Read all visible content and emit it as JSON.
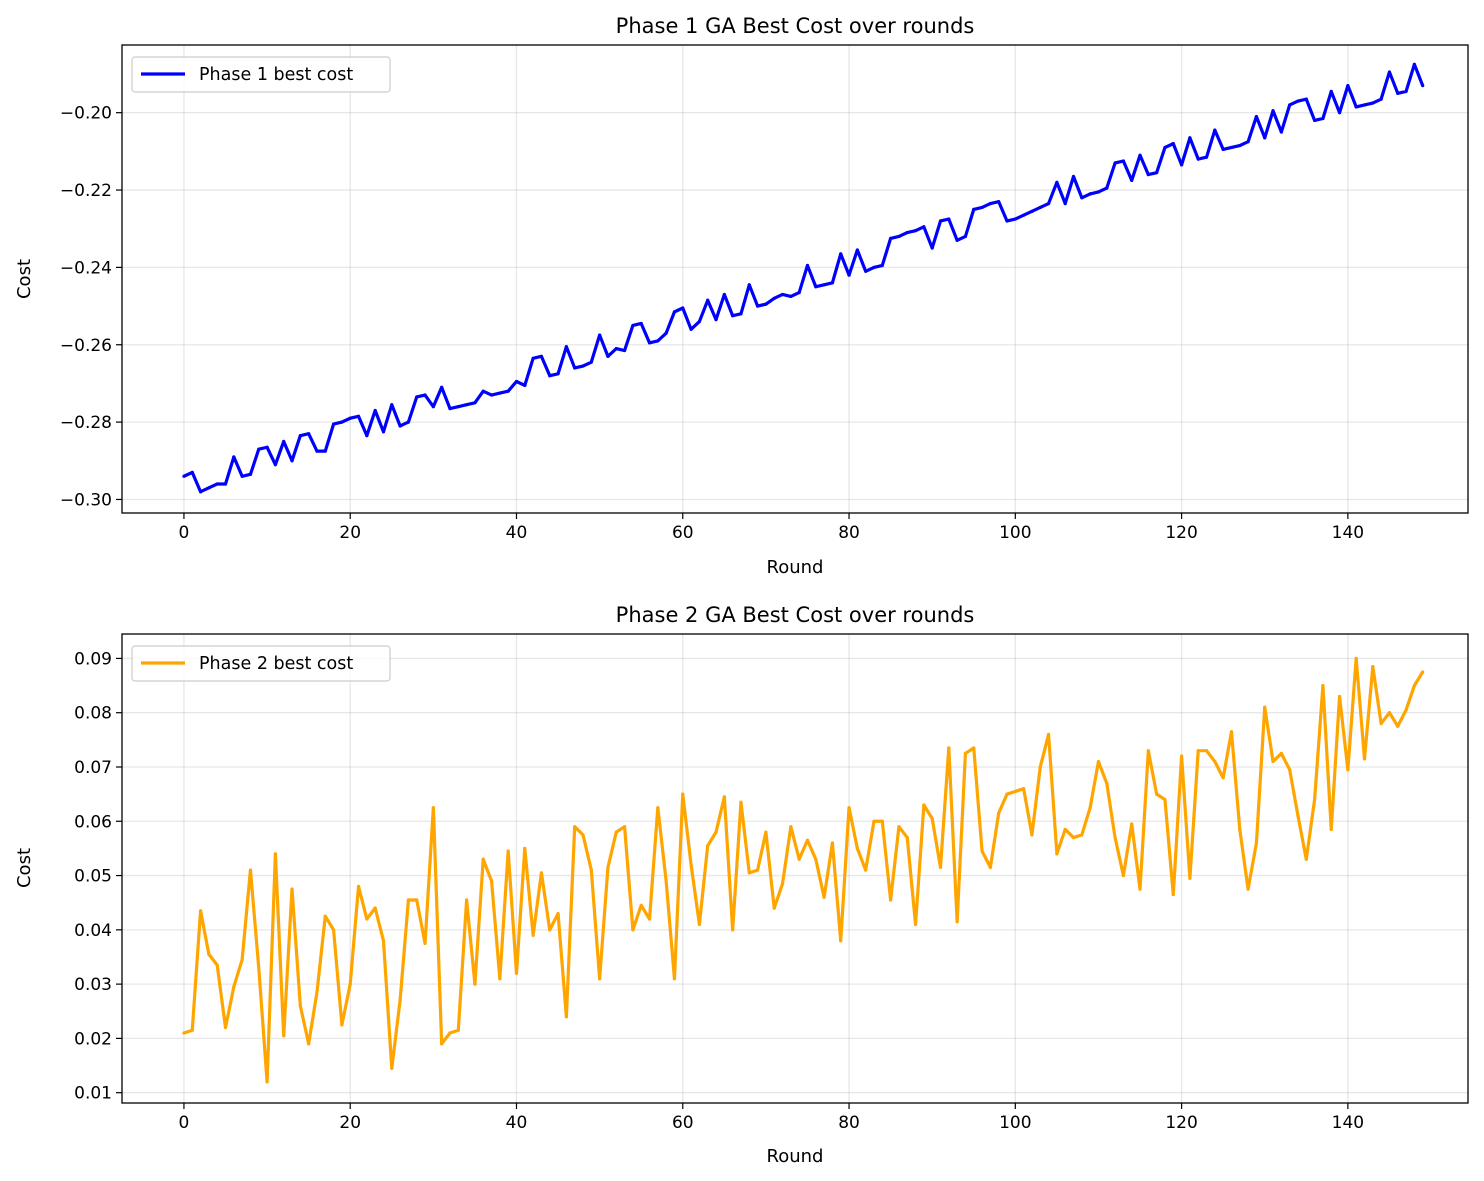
{
  "chart_data": [
    {
      "type": "line",
      "title": "Phase 1 GA Best Cost over rounds",
      "xlabel": "Round",
      "ylabel": "Cost",
      "xlim": [
        -7.45,
        154.45
      ],
      "ylim": [
        -0.3035,
        -0.1825
      ],
      "xticks": [
        0,
        20,
        40,
        60,
        80,
        100,
        120,
        140
      ],
      "yticks": [
        -0.3,
        -0.28,
        -0.26,
        -0.24,
        -0.22,
        -0.2
      ],
      "ytick_labels": [
        "−0.30",
        "−0.28",
        "−0.26",
        "−0.24",
        "−0.22",
        "−0.20"
      ],
      "grid": true,
      "legend_position": "upper-left",
      "series": [
        {
          "name": "Phase 1 best cost",
          "color": "#0000ff",
          "values": [
            -0.294,
            -0.293,
            -0.298,
            -0.297,
            -0.296,
            -0.296,
            -0.289,
            -0.294,
            -0.2935,
            -0.287,
            -0.2865,
            -0.291,
            -0.285,
            -0.29,
            -0.2835,
            -0.283,
            -0.2875,
            -0.2875,
            -0.2805,
            -0.28,
            -0.279,
            -0.2785,
            -0.2835,
            -0.277,
            -0.2825,
            -0.2755,
            -0.281,
            -0.28,
            -0.2735,
            -0.273,
            -0.276,
            -0.271,
            -0.2765,
            -0.276,
            -0.2755,
            -0.275,
            -0.272,
            -0.273,
            -0.2725,
            -0.272,
            -0.2695,
            -0.2705,
            -0.2635,
            -0.263,
            -0.268,
            -0.2675,
            -0.2605,
            -0.266,
            -0.2655,
            -0.2645,
            -0.2575,
            -0.263,
            -0.261,
            -0.2615,
            -0.255,
            -0.2545,
            -0.2595,
            -0.259,
            -0.257,
            -0.2515,
            -0.2505,
            -0.256,
            -0.254,
            -0.2485,
            -0.2535,
            -0.247,
            -0.2525,
            -0.252,
            -0.2445,
            -0.25,
            -0.2495,
            -0.248,
            -0.247,
            -0.2475,
            -0.2465,
            -0.2395,
            -0.245,
            -0.2445,
            -0.244,
            -0.2365,
            -0.242,
            -0.2355,
            -0.241,
            -0.24,
            -0.2395,
            -0.2325,
            -0.232,
            -0.231,
            -0.2305,
            -0.2295,
            -0.235,
            -0.228,
            -0.2275,
            -0.233,
            -0.232,
            -0.225,
            -0.2245,
            -0.2235,
            -0.223,
            -0.228,
            -0.2275,
            -0.2265,
            -0.2255,
            -0.2245,
            -0.2235,
            -0.218,
            -0.2235,
            -0.2165,
            -0.222,
            -0.221,
            -0.2205,
            -0.2195,
            -0.213,
            -0.2125,
            -0.2175,
            -0.211,
            -0.216,
            -0.2155,
            -0.209,
            -0.208,
            -0.2135,
            -0.2065,
            -0.212,
            -0.2115,
            -0.2045,
            -0.2095,
            -0.209,
            -0.2085,
            -0.2075,
            -0.201,
            -0.2065,
            -0.1995,
            -0.205,
            -0.198,
            -0.197,
            -0.1965,
            -0.202,
            -0.2015,
            -0.1945,
            -0.2,
            -0.193,
            -0.1985,
            -0.198,
            -0.1975,
            -0.1965,
            -0.1895,
            -0.195,
            -0.1945,
            -0.1875,
            -0.193
          ]
        }
      ]
    },
    {
      "type": "line",
      "title": "Phase 2 GA Best Cost over rounds",
      "xlabel": "Round",
      "ylabel": "Cost",
      "xlim": [
        -7.45,
        154.45
      ],
      "ylim": [
        0.0081,
        0.0945
      ],
      "xticks": [
        0,
        20,
        40,
        60,
        80,
        100,
        120,
        140
      ],
      "yticks": [
        0.01,
        0.02,
        0.03,
        0.04,
        0.05,
        0.06,
        0.07,
        0.08,
        0.09
      ],
      "ytick_labels": [
        "0.01",
        "0.02",
        "0.03",
        "0.04",
        "0.05",
        "0.06",
        "0.07",
        "0.08",
        "0.09"
      ],
      "grid": true,
      "legend_position": "upper-left",
      "series": [
        {
          "name": "Phase 2 best cost",
          "color": "#ffa500",
          "values": [
            0.021,
            0.0215,
            0.0435,
            0.0355,
            0.0335,
            0.022,
            0.0295,
            0.0345,
            0.051,
            0.033,
            0.012,
            0.054,
            0.0205,
            0.0475,
            0.026,
            0.019,
            0.0285,
            0.0425,
            0.04,
            0.0225,
            0.03,
            0.048,
            0.042,
            0.044,
            0.038,
            0.0145,
            0.027,
            0.0455,
            0.0455,
            0.0375,
            0.0625,
            0.019,
            0.021,
            0.0215,
            0.0455,
            0.03,
            0.053,
            0.049,
            0.031,
            0.0545,
            0.032,
            0.055,
            0.039,
            0.0505,
            0.04,
            0.043,
            0.024,
            0.059,
            0.0575,
            0.051,
            0.031,
            0.0515,
            0.058,
            0.059,
            0.04,
            0.0445,
            0.042,
            0.0625,
            0.049,
            0.031,
            0.065,
            0.052,
            0.041,
            0.0555,
            0.058,
            0.0645,
            0.04,
            0.0635,
            0.0505,
            0.051,
            0.058,
            0.044,
            0.0485,
            0.059,
            0.053,
            0.0565,
            0.053,
            0.046,
            0.056,
            0.038,
            0.0625,
            0.055,
            0.051,
            0.06,
            0.06,
            0.0455,
            0.059,
            0.057,
            0.041,
            0.063,
            0.0605,
            0.0515,
            0.0735,
            0.0415,
            0.0725,
            0.0735,
            0.0545,
            0.0515,
            0.0615,
            0.065,
            0.0655,
            0.066,
            0.0575,
            0.07,
            0.076,
            0.054,
            0.0585,
            0.057,
            0.0575,
            0.0625,
            0.071,
            0.067,
            0.057,
            0.05,
            0.0595,
            0.0475,
            0.073,
            0.065,
            0.064,
            0.0465,
            0.072,
            0.0495,
            0.073,
            0.073,
            0.071,
            0.068,
            0.0765,
            0.0585,
            0.0475,
            0.056,
            0.081,
            0.071,
            0.0725,
            0.0695,
            0.061,
            0.053,
            0.064,
            0.085,
            0.0585,
            0.083,
            0.0695,
            0.09,
            0.0715,
            0.0885,
            0.078,
            0.08,
            0.0775,
            0.0805,
            0.085,
            0.0875
          ]
        }
      ]
    }
  ]
}
